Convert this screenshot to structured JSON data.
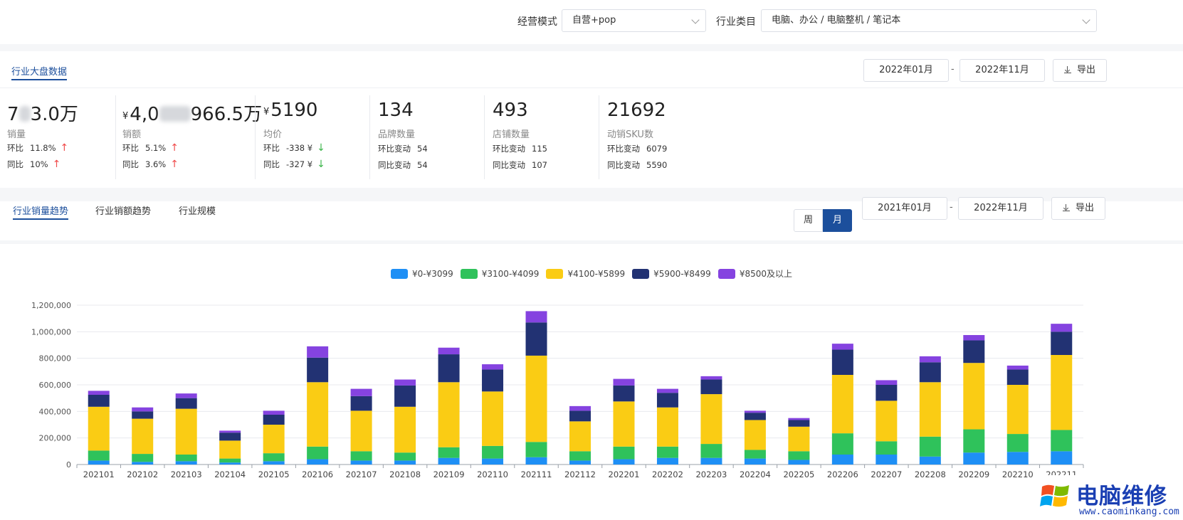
{
  "filters": {
    "mode_label": "经营模式",
    "mode_value": "自营+pop",
    "category_label": "行业类目",
    "category_value": "电脑、办公 / 电脑整机 / 笔记本"
  },
  "overview": {
    "tab": "行业大盘数据",
    "date_from": "2022年01月",
    "date_sep": "-",
    "date_to": "2022年11月",
    "export": "导出"
  },
  "kpis": [
    {
      "value_pre": "7",
      "value_post": "3.0万",
      "name": "销量",
      "r1_label": "环比",
      "r1_value": "11.8%",
      "r2_label": "同比",
      "r2_value": "10%"
    },
    {
      "currency": "¥",
      "value_pre": "4,0",
      "value_post": "966.5万",
      "name": "销额",
      "r1_label": "环比",
      "r1_value": "5.1%",
      "r2_label": "同比",
      "r2_value": "3.6%"
    },
    {
      "currency": "¥",
      "value": "5190",
      "name": "均价",
      "r1_label": "环比",
      "r1_value": "-338 ¥",
      "r2_label": "同比",
      "r2_value": "-327 ¥"
    },
    {
      "value": "134",
      "name": "品牌数量",
      "r1_label": "环比变动",
      "r1_value": "54",
      "r2_label": "同比变动",
      "r2_value": "54"
    },
    {
      "value": "493",
      "name": "店铺数量",
      "r1_label": "环比变动",
      "r1_value": "115",
      "r2_label": "同比变动",
      "r2_value": "107"
    },
    {
      "value": "21692",
      "name": "动销SKU数",
      "r1_label": "环比变动",
      "r1_value": "6079",
      "r2_label": "同比变动",
      "r2_value": "5590"
    }
  ],
  "trend": {
    "tabs": [
      "行业销量趋势",
      "行业销额趋势",
      "行业规模"
    ],
    "week": "周",
    "month": "月",
    "date_from": "2021年01月",
    "date_sep": "-",
    "date_to": "2022年11月",
    "export": "导出"
  },
  "colors": {
    "accent": "#1c4f9c",
    "up": "#f04a4a",
    "down": "#3cb54a"
  },
  "chart_data": {
    "type": "bar",
    "stacked": true,
    "categories": [
      "202101",
      "202102",
      "202103",
      "202104",
      "202105",
      "202106",
      "202107",
      "202108",
      "202109",
      "202110",
      "202111",
      "202112",
      "202201",
      "202202",
      "202203",
      "202204",
      "202205",
      "202206",
      "202207",
      "202208",
      "202209",
      "202210",
      "202211"
    ],
    "series": [
      {
        "name": "¥0-¥3099",
        "color": "#1e8ff5",
        "values": [
          30000,
          20000,
          25000,
          15000,
          25000,
          40000,
          30000,
          30000,
          50000,
          45000,
          55000,
          30000,
          40000,
          50000,
          50000,
          45000,
          35000,
          75000,
          75000,
          60000,
          90000,
          95000,
          100000
        ]
      },
      {
        "name": "¥3100-¥4099",
        "color": "#2fc25b",
        "values": [
          75000,
          60000,
          50000,
          30000,
          60000,
          95000,
          70000,
          60000,
          80000,
          95000,
          115000,
          70000,
          95000,
          85000,
          105000,
          65000,
          65000,
          160000,
          100000,
          150000,
          175000,
          135000,
          160000
        ]
      },
      {
        "name": "¥4100-¥5899",
        "color": "#facc14",
        "values": [
          330000,
          265000,
          345000,
          135000,
          215000,
          485000,
          305000,
          345000,
          490000,
          410000,
          650000,
          225000,
          340000,
          295000,
          375000,
          225000,
          185000,
          440000,
          305000,
          410000,
          500000,
          370000,
          565000
        ]
      },
      {
        "name": "¥5900-¥8499",
        "color": "#223273",
        "values": [
          90000,
          55000,
          80000,
          60000,
          75000,
          185000,
          110000,
          160000,
          210000,
          165000,
          250000,
          80000,
          120000,
          110000,
          110000,
          55000,
          50000,
          190000,
          120000,
          150000,
          170000,
          115000,
          175000
        ]
      },
      {
        "name": "¥8500及以上",
        "color": "#8543e0",
        "values": [
          30000,
          30000,
          35000,
          15000,
          30000,
          85000,
          55000,
          45000,
          50000,
          40000,
          85000,
          35000,
          50000,
          30000,
          25000,
          15000,
          15000,
          45000,
          35000,
          45000,
          40000,
          30000,
          60000
        ]
      }
    ],
    "y_ticks": [
      "0",
      "200,000",
      "400,000",
      "600,000",
      "800,000",
      "1,000,000",
      "1,200,000"
    ],
    "ylim": [
      0,
      1200000
    ],
    "legend_position": "top-center",
    "grid": true
  },
  "watermark": {
    "title": "电脑维修",
    "url": "www.caominkang.com"
  }
}
